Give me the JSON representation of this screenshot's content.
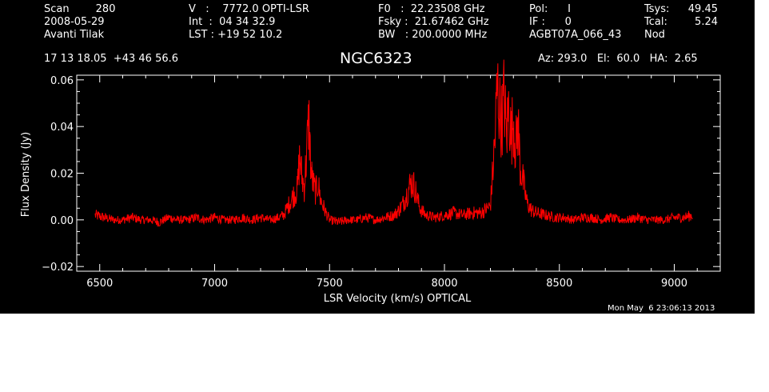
{
  "header": {
    "col1": [
      "Scan        280",
      "2008-05-29",
      "Avanti Tilak"
    ],
    "col2": [
      "V   :    7772.0 OPTI-LSR",
      "Int  :  04 34 32.9",
      "LST : +19 52 10.2"
    ],
    "col3": [
      "F0   :  22.23508 GHz",
      "Fsky :  21.67462 GHz",
      "BW   : 200.0000 MHz"
    ],
    "col4": [
      "Pol:      I",
      "IF :      0",
      "AGBT07A_066_43"
    ],
    "col5": [
      "Tsys:",
      "Tcal:",
      "Nod"
    ],
    "col6": [
      "49.45",
      "5.24",
      ""
    ]
  },
  "coords": "17 13 18.05  +43 46 56.6",
  "object_name": "NGC6323",
  "pointing": "Az: 293.0   El:  60.0   HA:  2.65",
  "timestamp": "Mon May  6 23:06:13 2013",
  "colors": {
    "background": "#000000",
    "foreground": "#ffffff",
    "trace": "#ff0000"
  },
  "chart_data": {
    "type": "line",
    "title": "NGC6323",
    "xlabel": "LSR Velocity (km/s) OPTICAL",
    "ylabel": "Flux Density (Jy)",
    "xlim": [
      6400,
      9200
    ],
    "ylim": [
      -0.022,
      0.062
    ],
    "xticks": [
      6500,
      7000,
      7500,
      8000,
      8500,
      9000
    ],
    "xtick_labels": [
      "6500",
      "7000",
      "7500",
      "8000",
      "8500",
      "9000"
    ],
    "yticks": [
      -0.02,
      0.0,
      0.02,
      0.04,
      0.06
    ],
    "ytick_labels": [
      "−0.02",
      "0.00",
      "0.02",
      "0.04",
      "0.06"
    ],
    "grid": false,
    "series": [
      {
        "x": [
          6480,
          6520,
          6560,
          6600,
          6640,
          6680,
          6720,
          6760,
          6800,
          6840,
          6880,
          6920,
          6960,
          7000,
          7040,
          7080,
          7120,
          7160,
          7200,
          7240,
          7280,
          7300,
          7320,
          7340,
          7360,
          7370,
          7380,
          7390,
          7400,
          7410,
          7420,
          7430,
          7440,
          7450,
          7460,
          7480,
          7500,
          7540,
          7580,
          7620,
          7660,
          7700,
          7740,
          7780,
          7800,
          7820,
          7840,
          7850,
          7860,
          7870,
          7880,
          7890,
          7900,
          7920,
          7960,
          8000,
          8040,
          8080,
          8120,
          8160,
          8200,
          8220,
          8230,
          8240,
          8250,
          8260,
          8270,
          8280,
          8290,
          8300,
          8310,
          8320,
          8330,
          8340,
          8350,
          8360,
          8380,
          8400,
          8440,
          8480,
          8520,
          8560,
          8600,
          8640,
          8680,
          8720,
          8760,
          8800,
          8840,
          8880,
          8920,
          8960,
          9000,
          9040,
          9080
        ],
        "y": [
          0.002,
          0.001,
          0.0,
          0.0,
          0.001,
          0.0,
          0.0,
          -0.001,
          0.001,
          0.0,
          0.0,
          0.001,
          0.0,
          0.001,
          0.0,
          0.0,
          0.001,
          0.0,
          0.001,
          0.0,
          0.001,
          0.002,
          0.006,
          0.01,
          0.013,
          0.027,
          0.018,
          0.014,
          0.028,
          0.043,
          0.02,
          0.015,
          0.012,
          0.016,
          0.009,
          0.004,
          0.0,
          -0.001,
          0.0,
          0.0,
          0.001,
          0.0,
          0.001,
          0.002,
          0.004,
          0.007,
          0.012,
          0.015,
          0.016,
          0.014,
          0.01,
          0.006,
          0.004,
          0.002,
          0.001,
          0.002,
          0.003,
          0.002,
          0.003,
          0.003,
          0.006,
          0.035,
          0.058,
          0.047,
          0.042,
          0.054,
          0.035,
          0.05,
          0.035,
          0.044,
          0.03,
          0.042,
          0.022,
          0.018,
          0.012,
          0.007,
          0.004,
          0.003,
          0.002,
          0.001,
          0.001,
          0.0,
          0.001,
          0.001,
          0.0,
          0.001,
          0.0,
          0.0,
          0.001,
          0.0,
          0.0,
          0.0,
          0.001,
          0.001,
          0.002
        ]
      }
    ]
  }
}
